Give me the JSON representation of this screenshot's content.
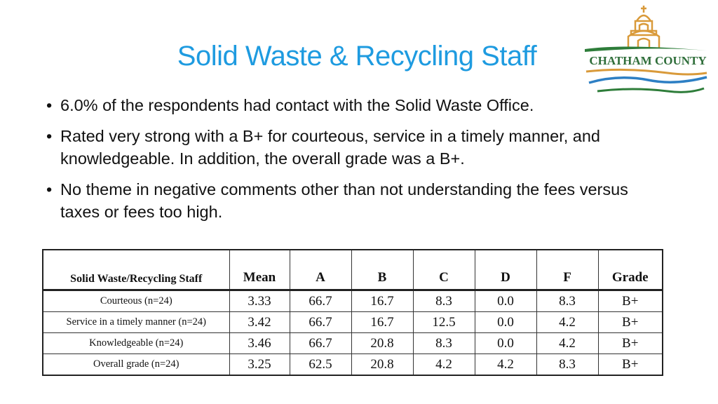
{
  "title": "Solid Waste & Recycling Staff",
  "logo": {
    "text": "CHATHAM COUNTY",
    "colors": {
      "gold": "#d99a3a",
      "green": "#2e7d3a",
      "blue": "#2d7fc4",
      "text": "#2f6e3a"
    }
  },
  "bullets": [
    {
      "marker": "•",
      "text": "6.0% of the respondents had contact with the Solid Waste Office."
    },
    {
      "marker": "•",
      "text": "Rated very strong with a B+ for courteous, service in a timely manner, and knowledgeable.  In addition, the overall grade was a B+."
    },
    {
      "marker": "•",
      "text": "No theme in negative comments other than not understanding the fees versus taxes or fees too high."
    }
  ],
  "table": {
    "headers": [
      "Solid Waste/Recycling Staff",
      "Mean",
      "A",
      "B",
      "C",
      "D",
      "F",
      "Grade"
    ],
    "rows": [
      [
        "Courteous (n=24)",
        "3.33",
        "66.7",
        "16.7",
        "8.3",
        "0.0",
        "8.3",
        "B+"
      ],
      [
        "Service in a timely manner (n=24)",
        "3.42",
        "66.7",
        "16.7",
        "12.5",
        "0.0",
        "4.2",
        "B+"
      ],
      [
        "Knowledgeable (n=24)",
        "3.46",
        "66.7",
        "20.8",
        "8.3",
        "0.0",
        "4.2",
        "B+"
      ],
      [
        "Overall grade (n=24)",
        "3.25",
        "62.5",
        "20.8",
        "4.2",
        "4.2",
        "8.3",
        "B+"
      ]
    ]
  }
}
